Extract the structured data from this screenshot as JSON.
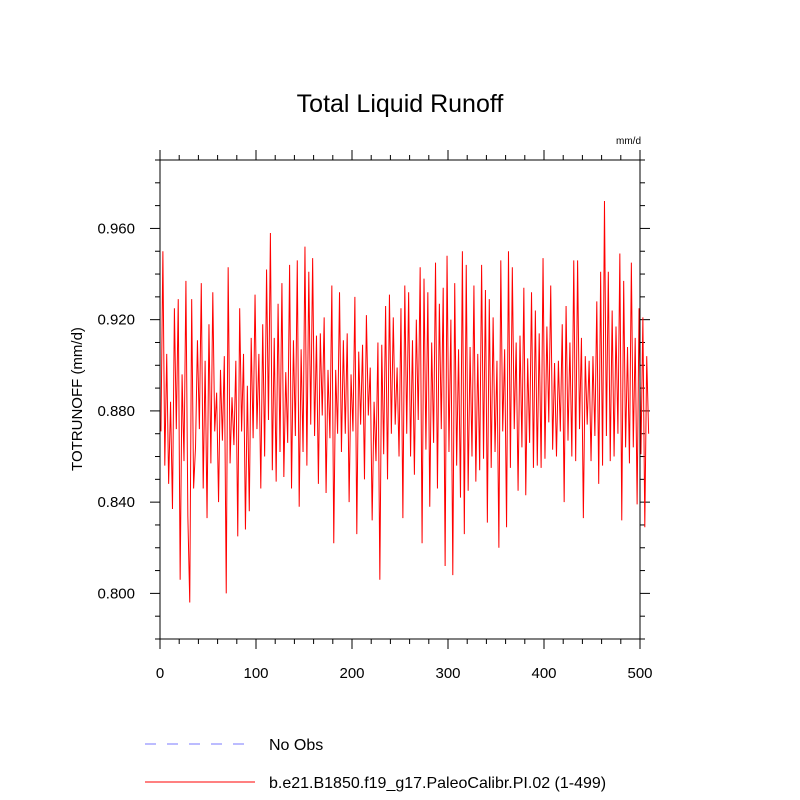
{
  "chart_data": {
    "type": "line",
    "title": "Total Liquid Runoff",
    "units_label": "mm/d",
    "ylabel": "TOTRUNOFF  (mm/d)",
    "xlabel": "",
    "xlim": [
      0,
      500
    ],
    "ylim": [
      0.78,
      0.99
    ],
    "x_ticks": [
      0,
      100,
      200,
      300,
      400,
      500
    ],
    "x_tick_labels": [
      "0",
      "100",
      "200",
      "300",
      "400",
      "500"
    ],
    "y_ticks": [
      0.8,
      0.84,
      0.88,
      0.92,
      0.96
    ],
    "y_tick_labels": [
      "0.800",
      "0.840",
      "0.880",
      "0.920",
      "0.960"
    ],
    "grid": false,
    "legend_position": "bottom",
    "series": [
      {
        "name": "No Obs",
        "color": "#7a7aff",
        "style": "dashed",
        "x": [],
        "y": []
      },
      {
        "name": "b.e21.B1850.f19_g17.PaleoCalibr.PI.02 (1-499)",
        "color": "#ff0000",
        "style": "solid",
        "x_start": 1,
        "x_step": 2,
        "y": [
          0.871,
          0.95,
          0.856,
          0.905,
          0.848,
          0.884,
          0.837,
          0.925,
          0.872,
          0.929,
          0.806,
          0.896,
          0.858,
          0.937,
          0.834,
          0.796,
          0.929,
          0.846,
          0.864,
          0.911,
          0.872,
          0.936,
          0.846,
          0.902,
          0.833,
          0.918,
          0.857,
          0.932,
          0.871,
          0.888,
          0.84,
          0.898,
          0.867,
          0.904,
          0.8,
          0.943,
          0.857,
          0.886,
          0.865,
          0.902,
          0.825,
          0.925,
          0.871,
          0.905,
          0.828,
          0.891,
          0.836,
          0.912,
          0.868,
          0.931,
          0.872,
          0.905,
          0.846,
          0.918,
          0.86,
          0.942,
          0.876,
          0.958,
          0.854,
          0.912,
          0.849,
          0.927,
          0.862,
          0.936,
          0.851,
          0.897,
          0.866,
          0.944,
          0.846,
          0.911,
          0.869,
          0.946,
          0.838,
          0.907,
          0.862,
          0.952,
          0.856,
          0.941,
          0.874,
          0.947,
          0.869,
          0.913,
          0.848,
          0.914,
          0.878,
          0.921,
          0.844,
          0.898,
          0.868,
          0.935,
          0.822,
          0.898,
          0.87,
          0.932,
          0.862,
          0.911,
          0.87,
          0.914,
          0.84,
          0.896,
          0.871,
          0.93,
          0.826,
          0.906,
          0.874,
          0.909,
          0.85,
          0.922,
          0.878,
          0.899,
          0.832,
          0.884,
          0.858,
          0.91,
          0.806,
          0.909,
          0.861,
          0.926,
          0.85,
          0.931,
          0.87,
          0.921,
          0.874,
          0.899,
          0.86,
          0.925,
          0.833,
          0.935,
          0.87,
          0.932,
          0.86,
          0.911,
          0.852,
          0.92,
          0.876,
          0.943,
          0.822,
          0.938,
          0.863,
          0.932,
          0.838,
          0.91,
          0.866,
          0.945,
          0.846,
          0.927,
          0.872,
          0.934,
          0.812,
          0.948,
          0.862,
          0.92,
          0.808,
          0.936,
          0.856,
          0.907,
          0.842,
          0.95,
          0.826,
          0.944,
          0.845,
          0.908,
          0.86,
          0.935,
          0.849,
          0.905,
          0.854,
          0.944,
          0.859,
          0.933,
          0.831,
          0.929,
          0.855,
          0.921,
          0.862,
          0.902,
          0.82,
          0.946,
          0.871,
          0.907,
          0.829,
          0.95,
          0.855,
          0.943,
          0.872,
          0.91,
          0.845,
          0.913,
          0.864,
          0.934,
          0.843,
          0.903,
          0.866,
          0.932,
          0.855,
          0.924,
          0.856,
          0.914,
          0.855,
          0.947,
          0.859,
          0.917,
          0.875,
          0.935,
          0.863,
          0.901,
          0.86,
          0.902,
          0.871,
          0.918,
          0.84,
          0.926,
          0.867,
          0.91,
          0.86,
          0.946,
          0.858,
          0.946,
          0.872,
          0.912,
          0.833,
          0.904,
          0.874,
          0.902,
          0.858,
          0.904,
          0.869,
          0.928,
          0.848,
          0.941,
          0.856,
          0.972,
          0.869,
          0.941,
          0.858,
          0.924,
          0.86,
          0.917,
          0.87,
          0.949,
          0.832,
          0.937,
          0.864,
          0.908,
          0.857,
          0.945,
          0.864,
          0.912,
          0.839,
          0.925,
          0.861,
          0.921,
          0.829,
          0.904,
          0.87
        ]
      }
    ]
  }
}
